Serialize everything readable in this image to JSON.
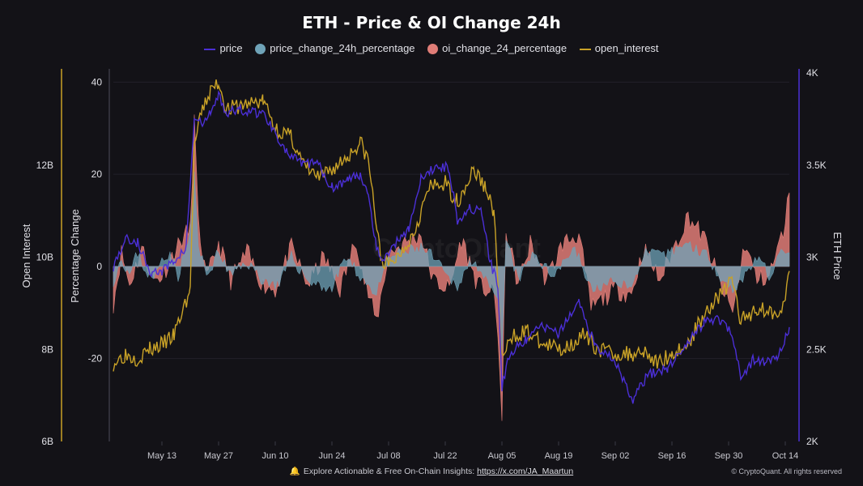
{
  "chart_data": {
    "type": "line",
    "title": "ETH - Price & OI Change 24h",
    "legend": [
      "price",
      "price_change_24h_percentage",
      "oi_change_24_percentage",
      "open_interest"
    ],
    "legend_placement": "top",
    "colors": {
      "price": "#4b2fd6",
      "price_change": "#6fa3b8",
      "oi_change": "#e07d77",
      "open_interest": "#c9a227",
      "background": "#131217",
      "grid": "#22212a"
    },
    "x_tick_labels": [
      "May 13",
      "May 27",
      "Jun 10",
      "Jun 24",
      "Jul 08",
      "Jul 22",
      "Aug 05",
      "Aug 19",
      "Sep 02",
      "Sep 16",
      "Sep 30",
      "Oct 14"
    ],
    "x_range": [
      "2024-05-01",
      "2024-10-15"
    ],
    "axes": {
      "open_interest": {
        "label": "Open Interest",
        "ticks": [
          "6B",
          "8B",
          "10B",
          "12B"
        ],
        "range": [
          6,
          14
        ]
      },
      "percentage": {
        "label": "Percentage Change",
        "ticks": [
          "-20",
          "0",
          "20",
          "40"
        ],
        "range": [
          -38,
          42
        ]
      },
      "price": {
        "label": "ETH Price",
        "ticks": [
          "2K",
          "2.5K",
          "3K",
          "3.5K",
          "4K"
        ],
        "range": [
          2000,
          4000
        ]
      }
    },
    "grid": true,
    "watermark": "CryptoQuant",
    "series": [
      {
        "name": "price",
        "axis": "price",
        "points": [
          [
            "2024-05-01",
            2950
          ],
          [
            "2024-05-04",
            3100
          ],
          [
            "2024-05-07",
            3080
          ],
          [
            "2024-05-10",
            2920
          ],
          [
            "2024-05-13",
            2920
          ],
          [
            "2024-05-16",
            2980
          ],
          [
            "2024-05-19",
            3050
          ],
          [
            "2024-05-21",
            3750
          ],
          [
            "2024-05-23",
            3720
          ],
          [
            "2024-05-25",
            3780
          ],
          [
            "2024-05-27",
            3880
          ],
          [
            "2024-05-29",
            3780
          ],
          [
            "2024-06-01",
            3800
          ],
          [
            "2024-06-04",
            3790
          ],
          [
            "2024-06-07",
            3780
          ],
          [
            "2024-06-10",
            3680
          ],
          [
            "2024-06-13",
            3560
          ],
          [
            "2024-06-17",
            3500
          ],
          [
            "2024-06-20",
            3520
          ],
          [
            "2024-06-24",
            3380
          ],
          [
            "2024-06-28",
            3420
          ],
          [
            "2024-07-01",
            3450
          ],
          [
            "2024-07-03",
            3350
          ],
          [
            "2024-07-05",
            3050
          ],
          [
            "2024-07-07",
            2980
          ],
          [
            "2024-07-09",
            3060
          ],
          [
            "2024-07-13",
            3160
          ],
          [
            "2024-07-16",
            3420
          ],
          [
            "2024-07-20",
            3500
          ],
          [
            "2024-07-23",
            3480
          ],
          [
            "2024-07-25",
            3200
          ],
          [
            "2024-07-28",
            3270
          ],
          [
            "2024-07-31",
            3240
          ],
          [
            "2024-08-02",
            2980
          ],
          [
            "2024-08-04",
            2850
          ],
          [
            "2024-08-05",
            2300
          ],
          [
            "2024-08-07",
            2480
          ],
          [
            "2024-08-11",
            2550
          ],
          [
            "2024-08-15",
            2630
          ],
          [
            "2024-08-19",
            2580
          ],
          [
            "2024-08-24",
            2760
          ],
          [
            "2024-08-28",
            2520
          ],
          [
            "2024-09-02",
            2440
          ],
          [
            "2024-09-06",
            2220
          ],
          [
            "2024-09-10",
            2360
          ],
          [
            "2024-09-15",
            2400
          ],
          [
            "2024-09-20",
            2540
          ],
          [
            "2024-09-24",
            2650
          ],
          [
            "2024-09-28",
            2660
          ],
          [
            "2024-10-01",
            2580
          ],
          [
            "2024-10-03",
            2350
          ],
          [
            "2024-10-06",
            2440
          ],
          [
            "2024-10-09",
            2430
          ],
          [
            "2024-10-12",
            2450
          ],
          [
            "2024-10-15",
            2620
          ]
        ]
      },
      {
        "name": "open_interest",
        "axis": "open_interest",
        "points": [
          [
            "2024-05-01",
            7.7
          ],
          [
            "2024-05-04",
            7.9
          ],
          [
            "2024-05-07",
            7.8
          ],
          [
            "2024-05-10",
            8.0
          ],
          [
            "2024-05-13",
            8.1
          ],
          [
            "2024-05-16",
            8.3
          ],
          [
            "2024-05-18",
            8.8
          ],
          [
            "2024-05-20",
            9.3
          ],
          [
            "2024-05-21",
            12.4
          ],
          [
            "2024-05-23",
            13.2
          ],
          [
            "2024-05-25",
            13.6
          ],
          [
            "2024-05-27",
            13.8
          ],
          [
            "2024-05-29",
            13.2
          ],
          [
            "2024-06-02",
            13.3
          ],
          [
            "2024-06-07",
            13.4
          ],
          [
            "2024-06-10",
            12.8
          ],
          [
            "2024-06-14",
            12.6
          ],
          [
            "2024-06-17",
            12.0
          ],
          [
            "2024-06-21",
            11.7
          ],
          [
            "2024-06-24",
            11.9
          ],
          [
            "2024-06-28",
            12.2
          ],
          [
            "2024-07-01",
            12.5
          ],
          [
            "2024-07-03",
            12.1
          ],
          [
            "2024-07-06",
            10.0
          ],
          [
            "2024-07-08",
            9.8
          ],
          [
            "2024-07-10",
            10.0
          ],
          [
            "2024-07-14",
            10.5
          ],
          [
            "2024-07-18",
            11.5
          ],
          [
            "2024-07-22",
            11.6
          ],
          [
            "2024-07-25",
            11.2
          ],
          [
            "2024-07-29",
            11.9
          ],
          [
            "2024-08-01",
            11.5
          ],
          [
            "2024-08-03",
            11.0
          ],
          [
            "2024-08-05",
            7.8
          ],
          [
            "2024-08-08",
            8.3
          ],
          [
            "2024-08-11",
            8.4
          ],
          [
            "2024-08-15",
            8.1
          ],
          [
            "2024-08-20",
            8.0
          ],
          [
            "2024-08-25",
            8.3
          ],
          [
            "2024-08-29",
            8.0
          ],
          [
            "2024-09-02",
            7.9
          ],
          [
            "2024-09-06",
            7.9
          ],
          [
            "2024-09-09",
            8.0
          ],
          [
            "2024-09-12",
            7.7
          ],
          [
            "2024-09-16",
            7.9
          ],
          [
            "2024-09-20",
            8.1
          ],
          [
            "2024-09-24",
            8.8
          ],
          [
            "2024-09-28",
            9.2
          ],
          [
            "2024-10-01",
            9.5
          ],
          [
            "2024-10-03",
            8.6
          ],
          [
            "2024-10-07",
            8.9
          ],
          [
            "2024-10-11",
            8.8
          ],
          [
            "2024-10-14",
            9.0
          ],
          [
            "2024-10-15",
            9.7
          ]
        ]
      },
      {
        "name": "price_change_24h_percentage",
        "axis": "percentage",
        "kind": "area",
        "points": [
          [
            "2024-05-01",
            -3
          ],
          [
            "2024-05-03",
            2
          ],
          [
            "2024-05-05",
            -2
          ],
          [
            "2024-05-07",
            3
          ],
          [
            "2024-05-09",
            -1
          ],
          [
            "2024-05-11",
            -3
          ],
          [
            "2024-05-13",
            2
          ],
          [
            "2024-05-15",
            3
          ],
          [
            "2024-05-17",
            -2
          ],
          [
            "2024-05-20",
            7
          ],
          [
            "2024-05-21",
            20
          ],
          [
            "2024-05-22",
            4
          ],
          [
            "2024-05-24",
            -2
          ],
          [
            "2024-05-27",
            3
          ],
          [
            "2024-05-30",
            -2
          ],
          [
            "2024-06-03",
            1
          ],
          [
            "2024-06-07",
            -3
          ],
          [
            "2024-06-11",
            -4
          ],
          [
            "2024-06-14",
            2
          ],
          [
            "2024-06-18",
            -3
          ],
          [
            "2024-06-24",
            -5
          ],
          [
            "2024-06-27",
            2
          ],
          [
            "2024-07-02",
            -3
          ],
          [
            "2024-07-05",
            -6
          ],
          [
            "2024-07-08",
            2
          ],
          [
            "2024-07-12",
            3
          ],
          [
            "2024-07-16",
            4
          ],
          [
            "2024-07-19",
            2
          ],
          [
            "2024-07-23",
            -3
          ],
          [
            "2024-07-25",
            -4
          ],
          [
            "2024-07-29",
            2
          ],
          [
            "2024-08-02",
            -5
          ],
          [
            "2024-08-04",
            -8
          ],
          [
            "2024-08-05",
            -20
          ],
          [
            "2024-08-06",
            6
          ],
          [
            "2024-08-09",
            -3
          ],
          [
            "2024-08-13",
            3
          ],
          [
            "2024-08-17",
            -2
          ],
          [
            "2024-08-23",
            4
          ],
          [
            "2024-08-27",
            -5
          ],
          [
            "2024-09-03",
            -3
          ],
          [
            "2024-09-06",
            -5
          ],
          [
            "2024-09-09",
            3
          ],
          [
            "2024-09-14",
            2
          ],
          [
            "2024-09-19",
            5
          ],
          [
            "2024-09-24",
            3
          ],
          [
            "2024-09-28",
            -2
          ],
          [
            "2024-10-01",
            -5
          ],
          [
            "2024-10-03",
            -3
          ],
          [
            "2024-10-07",
            2
          ],
          [
            "2024-10-10",
            -2
          ],
          [
            "2024-10-14",
            4
          ],
          [
            "2024-10-15",
            3
          ]
        ]
      },
      {
        "name": "oi_change_24_percentage",
        "axis": "percentage",
        "kind": "area",
        "points": [
          [
            "2024-05-01",
            -8
          ],
          [
            "2024-05-03",
            3
          ],
          [
            "2024-05-05",
            -4
          ],
          [
            "2024-05-08",
            4
          ],
          [
            "2024-05-11",
            -3
          ],
          [
            "2024-05-13",
            -2
          ],
          [
            "2024-05-16",
            3
          ],
          [
            "2024-05-18",
            6
          ],
          [
            "2024-05-20",
            8
          ],
          [
            "2024-05-21",
            32
          ],
          [
            "2024-05-22",
            9
          ],
          [
            "2024-05-24",
            -3
          ],
          [
            "2024-05-27",
            5
          ],
          [
            "2024-05-30",
            -3
          ],
          [
            "2024-06-03",
            3
          ],
          [
            "2024-06-07",
            -4
          ],
          [
            "2024-06-10",
            -5
          ],
          [
            "2024-06-14",
            4
          ],
          [
            "2024-06-18",
            -4
          ],
          [
            "2024-06-22",
            2
          ],
          [
            "2024-06-26",
            -5
          ],
          [
            "2024-06-30",
            6
          ],
          [
            "2024-07-02",
            -3
          ],
          [
            "2024-07-05",
            -12
          ],
          [
            "2024-07-08",
            3
          ],
          [
            "2024-07-12",
            5
          ],
          [
            "2024-07-16",
            7
          ],
          [
            "2024-07-19",
            -3
          ],
          [
            "2024-07-23",
            -5
          ],
          [
            "2024-07-26",
            6
          ],
          [
            "2024-07-30",
            -4
          ],
          [
            "2024-08-03",
            -6
          ],
          [
            "2024-08-04",
            -14
          ],
          [
            "2024-08-05",
            -34
          ],
          [
            "2024-08-06",
            8
          ],
          [
            "2024-08-09",
            -4
          ],
          [
            "2024-08-12",
            5
          ],
          [
            "2024-08-16",
            -3
          ],
          [
            "2024-08-20",
            5
          ],
          [
            "2024-08-24",
            7
          ],
          [
            "2024-08-27",
            -9
          ],
          [
            "2024-09-02",
            -5
          ],
          [
            "2024-09-06",
            -6
          ],
          [
            "2024-09-09",
            4
          ],
          [
            "2024-09-13",
            -3
          ],
          [
            "2024-09-17",
            5
          ],
          [
            "2024-09-20",
            11
          ],
          [
            "2024-09-24",
            6
          ],
          [
            "2024-09-28",
            -4
          ],
          [
            "2024-10-01",
            -10
          ],
          [
            "2024-10-04",
            5
          ],
          [
            "2024-10-07",
            -3
          ],
          [
            "2024-10-10",
            -2
          ],
          [
            "2024-10-13",
            6
          ],
          [
            "2024-10-14",
            10
          ],
          [
            "2024-10-15",
            16
          ]
        ]
      }
    ]
  },
  "footer": {
    "text": "Explore Actionable & Free On-Chain Insights: ",
    "link": "https://x.com/JA_Maartun",
    "credit": "© CryptoQuant. All rights reserved"
  }
}
